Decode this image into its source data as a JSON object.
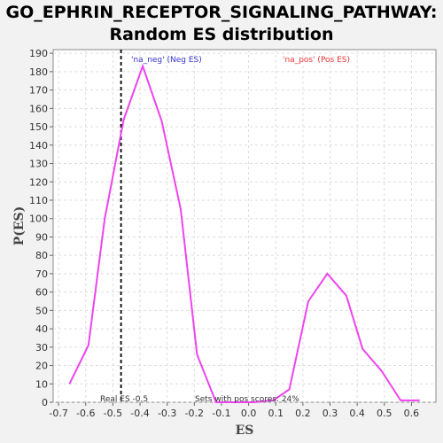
{
  "chart_data": {
    "type": "line",
    "title_line1": "GO_EPHRIN_RECEPTOR_SIGNALING_PATHWAY:",
    "title_line2": "Random ES distribution",
    "xlabel": "ES",
    "ylabel": "P(ES)",
    "xlim": [
      -0.72,
      0.69
    ],
    "ylim": [
      0,
      192
    ],
    "x_ticks": [
      "-0.7",
      "-0.6",
      "-0.5",
      "-0.4",
      "-0.3",
      "-0.2",
      "-0.1",
      "0.0",
      "0.1",
      "0.2",
      "0.3",
      "0.4",
      "0.5",
      "0.6"
    ],
    "y_ticks": [
      "0",
      "10",
      "20",
      "30",
      "40",
      "50",
      "60",
      "70",
      "80",
      "90",
      "100",
      "110",
      "120",
      "130",
      "140",
      "150",
      "160",
      "170",
      "180",
      "190"
    ],
    "grid": true,
    "series": [
      {
        "color": "#ee44ee",
        "x": [
          -0.66,
          -0.59,
          -0.53,
          -0.46,
          -0.39,
          -0.32,
          -0.25,
          -0.19,
          -0.12,
          -0.05,
          0.02,
          0.09,
          0.15,
          0.22,
          0.29,
          0.36,
          0.42,
          0.49,
          0.56,
          0.63
        ],
        "y": [
          10,
          31,
          100,
          154,
          183,
          153,
          105,
          26,
          0,
          0,
          0,
          1,
          7,
          55,
          70,
          58,
          29,
          17,
          1,
          1
        ]
      }
    ],
    "real_es": -0.47,
    "annotations": {
      "neg_label": "'na_neg' (Neg ES)",
      "pos_label": "'na_pos' (Pos ES)",
      "real_es_label": "Real ES -0.5",
      "pos_scores_label": "Sets with pos scores: 24%"
    },
    "colors": {
      "neg": "#3333cc",
      "pos": "#ee3333",
      "line": "#ee44ee"
    }
  }
}
